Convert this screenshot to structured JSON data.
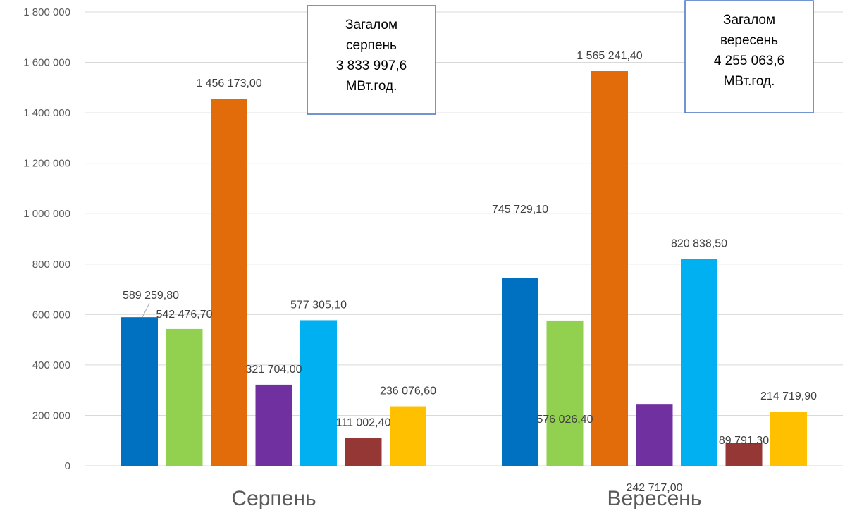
{
  "chart_data": {
    "type": "bar",
    "categories": [
      "Серпень",
      "Вересень"
    ],
    "ylim": [
      0,
      1800000
    ],
    "ytick_step": 200000,
    "grid": true,
    "legend": "none",
    "series": [
      {
        "color": "#0070c0",
        "values": [
          589259.8,
          745729.1
        ],
        "labels": [
          "589 259,80",
          "745 729,10"
        ]
      },
      {
        "color": "#92d050",
        "values": [
          542476.7,
          576026.4
        ],
        "labels": [
          "542 476,70",
          "576 026,40"
        ]
      },
      {
        "color": "#e36c0a",
        "values": [
          1456173.0,
          1565241.4
        ],
        "labels": [
          "1 456 173,00",
          "1 565 241,40"
        ]
      },
      {
        "color": "#7030a0",
        "values": [
          321704.0,
          242717.0
        ],
        "labels": [
          "321 704,00",
          "242 717,00"
        ]
      },
      {
        "color": "#00b0f0",
        "values": [
          577305.1,
          820838.5
        ],
        "labels": [
          "577 305,10",
          "820 838,50"
        ]
      },
      {
        "color": "#953735",
        "values": [
          111002.4,
          89791.3
        ],
        "labels": [
          "111 002,40",
          "89 791,30"
        ]
      },
      {
        "color": "#ffc000",
        "values": [
          236076.6,
          214719.9
        ],
        "labels": [
          "236 076,60",
          "214 719,90"
        ]
      }
    ],
    "ytick_labels": [
      "0",
      "200 000",
      "400 000",
      "600 000",
      "800 000",
      "1 000 000",
      "1 200 000",
      "1 400 000",
      "1 600 000",
      "1 800 000"
    ],
    "annotations": [
      {
        "lines": [
          "Загалом",
          "серпень",
          "3 833 997,6",
          "МВт.год."
        ]
      },
      {
        "lines": [
          "Загалом",
          "вересень",
          "4 255 063,6",
          "МВт.год."
        ]
      }
    ],
    "annotation_border_color": "#4472c4"
  }
}
